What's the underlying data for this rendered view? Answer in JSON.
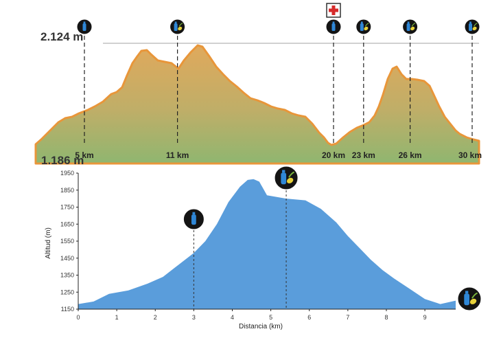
{
  "top_profile": {
    "max_elevation_label": "2.124 m",
    "min_elevation_label": "1.186 m",
    "km_markers": [
      {
        "label": "5 km",
        "km": 5,
        "icon": "water-icon"
      },
      {
        "label": "11 km",
        "km": 11,
        "icon": "food-water-icon"
      },
      {
        "label": "20 km",
        "km": 20,
        "icon": "water-icon",
        "medical": true
      },
      {
        "label": "23 km",
        "km": 23,
        "icon": "food-icon"
      },
      {
        "label": "26 km",
        "km": 26,
        "icon": "food-water-icon"
      },
      {
        "label": "30 km",
        "km": 30,
        "icon": "food-water-icon"
      }
    ],
    "colors": {
      "fill_top": "#e0a95c",
      "fill_bottom": "#8fb670",
      "line": "#e8963a",
      "grid": "#a0a0a0",
      "station_bg": "#141414",
      "bottle": "#2f87d6",
      "food": "#e8d23a",
      "medical": "#d62b2b"
    }
  },
  "chart_data": {
    "type": "area",
    "title": "",
    "xlabel": "Distancia (km)",
    "ylabel": "Altitud (m)",
    "xlim": [
      0,
      9.8
    ],
    "ylim": [
      1150,
      1950
    ],
    "x_ticks": [
      "0",
      "1",
      "2",
      "3",
      "4",
      "5",
      "6",
      "7",
      "8",
      "9"
    ],
    "y_ticks": [
      "1150",
      "1250",
      "1350",
      "1450",
      "1550",
      "1650",
      "1750",
      "1850",
      "1950"
    ],
    "grid": false,
    "x": [
      0,
      0.4,
      0.8,
      1.3,
      1.8,
      2.2,
      2.6,
      3.0,
      3.3,
      3.6,
      3.9,
      4.2,
      4.4,
      4.55,
      4.7,
      4.9,
      5.4,
      5.9,
      6.3,
      6.7,
      7.0,
      7.3,
      7.6,
      7.9,
      8.2,
      8.6,
      9.0,
      9.4,
      9.8
    ],
    "y": [
      1180,
      1195,
      1240,
      1260,
      1300,
      1340,
      1410,
      1480,
      1550,
      1650,
      1780,
      1870,
      1910,
      1915,
      1900,
      1820,
      1800,
      1790,
      1740,
      1660,
      1580,
      1510,
      1440,
      1380,
      1330,
      1270,
      1210,
      1180,
      1200
    ],
    "markers": [
      {
        "x": 3.0,
        "icon": "water-icon"
      },
      {
        "x": 5.4,
        "icon": "food-water-icon"
      },
      {
        "x": 9.8,
        "icon": "food-water-icon"
      }
    ],
    "colors": {
      "area": "#5a9ddb",
      "axis": "#222222",
      "guide": "#333333"
    }
  }
}
